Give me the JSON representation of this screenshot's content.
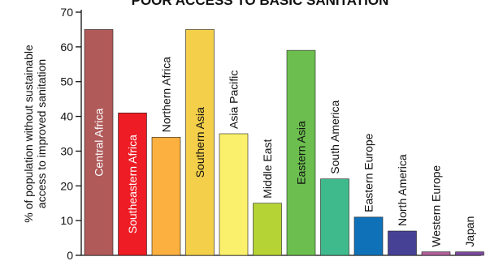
{
  "chart_data": {
    "type": "bar",
    "title": "POOR ACCESS TO BASIC SANITATION",
    "xlabel": "",
    "ylabel": "% of population without sustainable access to improved sanitation",
    "ylabel_lines": [
      "% of population without sustainable",
      "access to improved sanitation"
    ],
    "ylim": [
      0,
      70
    ],
    "yticks": [
      0,
      10,
      20,
      30,
      40,
      50,
      60,
      70
    ],
    "grid": false,
    "legend": "none",
    "categories": [
      "Central Africa",
      "Southeastern Africa",
      "Northern Africa",
      "Southern Asia",
      "Asia Pacific",
      "Middle East",
      "Eastern Asia",
      "South America",
      "Eastern Europe",
      "North America",
      "Western Europe",
      "Japan"
    ],
    "values": [
      65,
      41,
      34,
      65,
      35,
      15,
      59,
      22,
      11,
      7,
      1,
      1
    ],
    "colors": [
      "#b05a5a",
      "#ee1c24",
      "#fbb040",
      "#f3cf4a",
      "#fbf06b",
      "#b5d334",
      "#6cbf4f",
      "#3fba8c",
      "#0f72b9",
      "#474196",
      "#b25e9c",
      "#7a4a9c"
    ],
    "label_inside": [
      true,
      true,
      false,
      true,
      false,
      false,
      true,
      false,
      false,
      false,
      false,
      false
    ],
    "label_color_inside": [
      "#ffffff",
      "#ffffff",
      "#111111",
      "#111111",
      "#111111",
      "#111111",
      "#111111",
      "#111111",
      "#111111",
      "#111111",
      "#111111",
      "#111111"
    ]
  }
}
